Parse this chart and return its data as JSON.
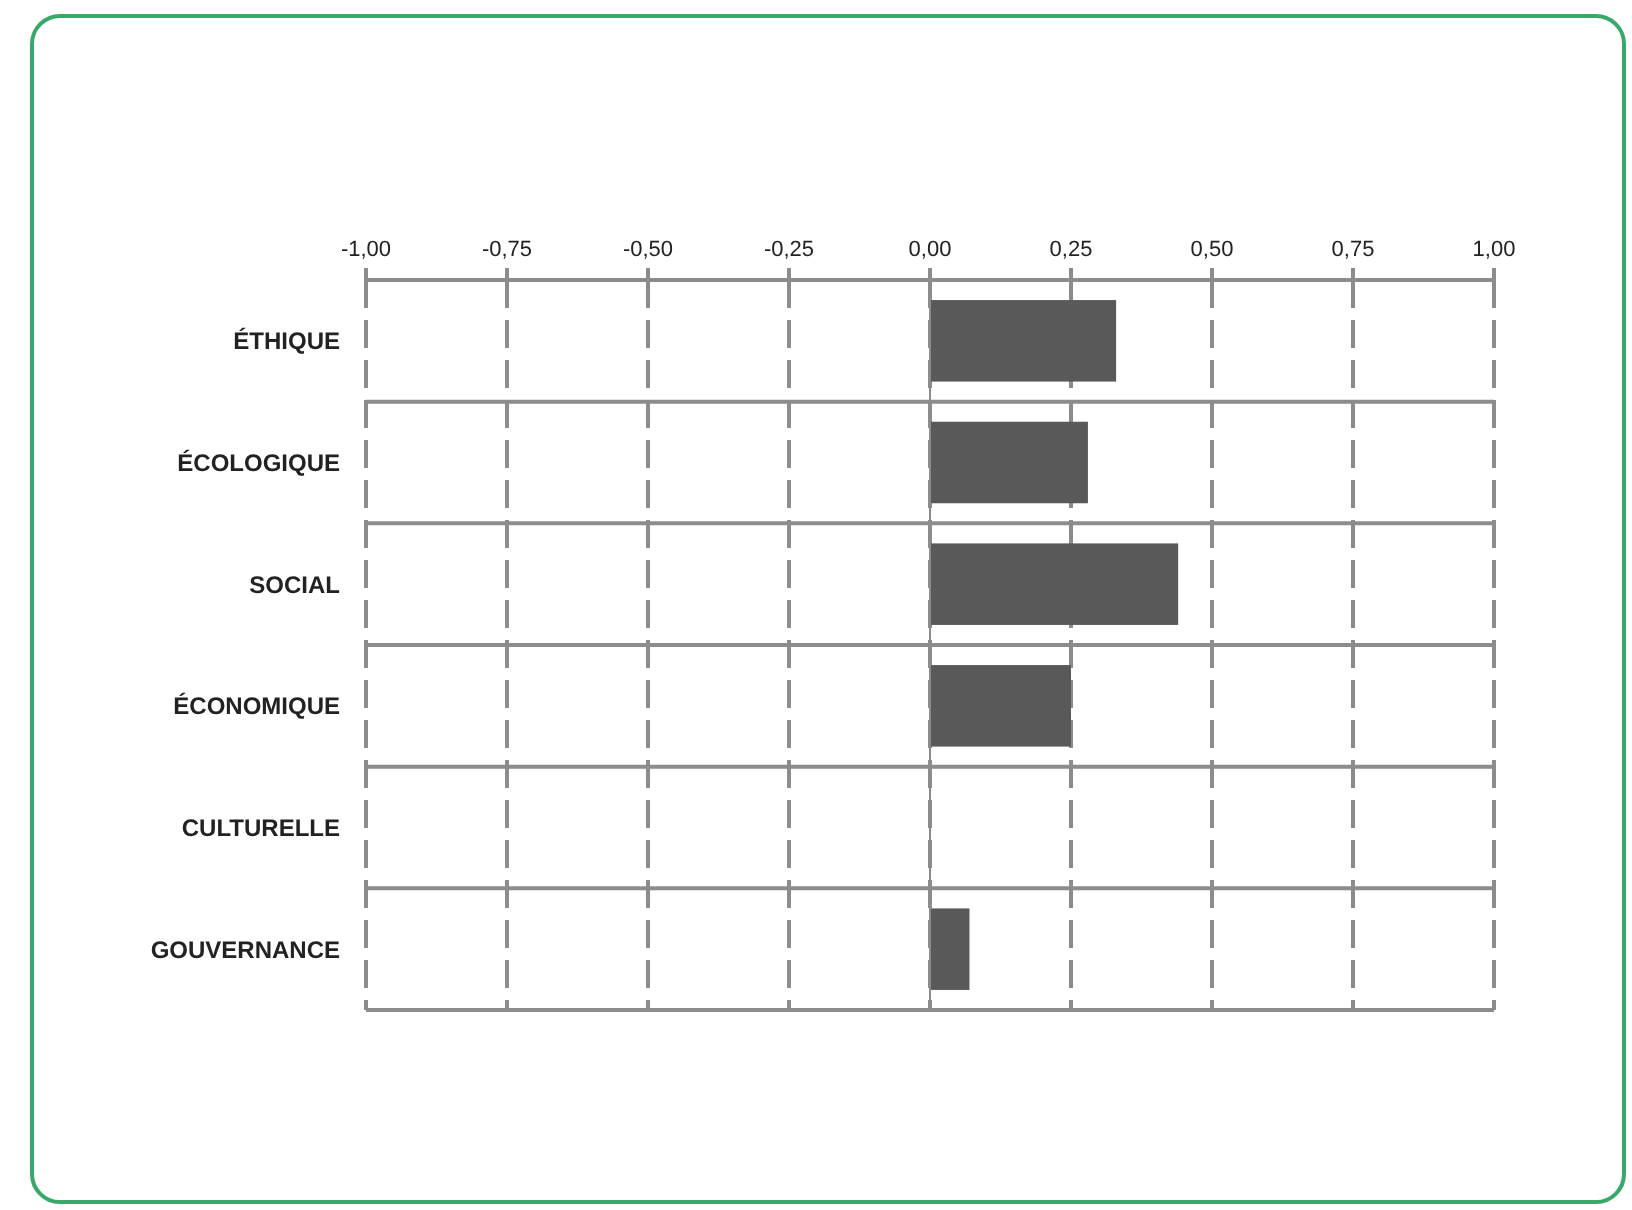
{
  "chart_data": {
    "type": "bar",
    "orientation": "horizontal",
    "categories": [
      "ÉTHIQUE",
      "ÉCOLOGIQUE",
      "SOCIAL",
      "ÉCONOMIQUE",
      "CULTURELLE",
      "GOUVERNANCE"
    ],
    "values": [
      0.33,
      0.28,
      0.44,
      0.25,
      0,
      0.07
    ],
    "color": "#595959",
    "xlim": [
      -1,
      1
    ],
    "xticks": [
      {
        "value": -1,
        "label": "-1,00"
      },
      {
        "value": -0.75,
        "label": "-0,75"
      },
      {
        "value": -0.5,
        "label": "-0,50"
      },
      {
        "value": -0.25,
        "label": "-0,25"
      },
      {
        "value": 0,
        "label": "0,00"
      },
      {
        "value": 0.25,
        "label": "0,25"
      },
      {
        "value": 0.5,
        "label": "0,50"
      },
      {
        "value": 0.75,
        "label": "0,75"
      },
      {
        "value": 1,
        "label": "1,00"
      }
    ],
    "grid": "x"
  }
}
